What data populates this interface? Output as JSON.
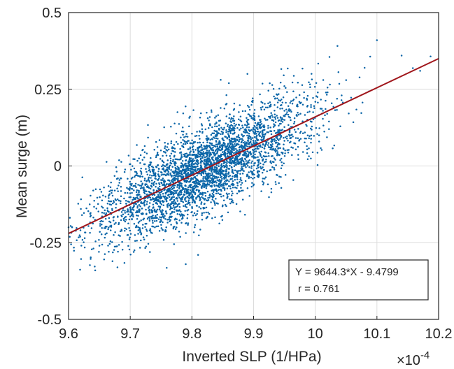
{
  "chart_data": {
    "type": "scatter",
    "title": "",
    "xlabel": "Inverted SLP (1/HPa)",
    "ylabel": "Mean surge (m)",
    "x_exponent_label": "×10",
    "x_exponent_power": "-4",
    "xlim": [
      9.6,
      10.2
    ],
    "ylim": [
      -0.5,
      0.5
    ],
    "xticks": [
      9.6,
      9.7,
      9.8,
      9.9,
      10.0,
      10.1,
      10.2
    ],
    "xtick_labels": [
      "9.6",
      "9.7",
      "9.8",
      "9.9",
      "10",
      "10.1",
      "10.2"
    ],
    "yticks": [
      -0.5,
      -0.25,
      0,
      0.25,
      0.5
    ],
    "ytick_labels": [
      "-0.5",
      "-0.25",
      "0",
      "0.25",
      "0.5"
    ],
    "grid": true,
    "series": [
      {
        "marker": "dot",
        "color": "#0b66a8",
        "approx_point_count": 3500,
        "cluster_center": [
          9.82,
          -0.01
        ],
        "points_sample": [
          [
            9.6,
            -0.2
          ],
          [
            9.62,
            -0.14
          ],
          [
            9.64,
            -0.08
          ],
          [
            9.65,
            -0.26
          ],
          [
            9.66,
            -0.1
          ],
          [
            9.68,
            -0.04
          ],
          [
            9.7,
            -0.15
          ],
          [
            9.72,
            0.02
          ],
          [
            9.74,
            -0.2
          ],
          [
            9.76,
            0.05
          ],
          [
            9.78,
            -0.05
          ],
          [
            9.8,
            0.0
          ],
          [
            9.82,
            0.04
          ],
          [
            9.84,
            -0.08
          ],
          [
            9.86,
            0.1
          ],
          [
            9.88,
            0.06
          ],
          [
            9.9,
            0.12
          ],
          [
            9.92,
            0.15
          ],
          [
            9.95,
            0.18
          ],
          [
            9.98,
            0.2
          ],
          [
            10.02,
            0.24
          ],
          [
            10.05,
            0.28
          ],
          [
            10.08,
            0.32
          ],
          [
            10.1,
            0.41
          ],
          [
            10.14,
            0.36
          ],
          [
            10.17,
            0.31
          ],
          [
            9.81,
            -0.29
          ],
          [
            9.79,
            -0.32
          ],
          [
            9.86,
            0.27
          ],
          [
            9.89,
            0.3
          ]
        ]
      },
      {
        "type": "line",
        "color": "#a0161b",
        "equation": {
          "slope": 9644.3,
          "intercept": -9.4799
        },
        "x": [
          9.6,
          10.2
        ],
        "y": [
          -0.22,
          0.35
        ]
      }
    ],
    "annotation": {
      "line1": "Y = 9644.3*X - 9.4799",
      "line2": "r = 0.761"
    }
  }
}
